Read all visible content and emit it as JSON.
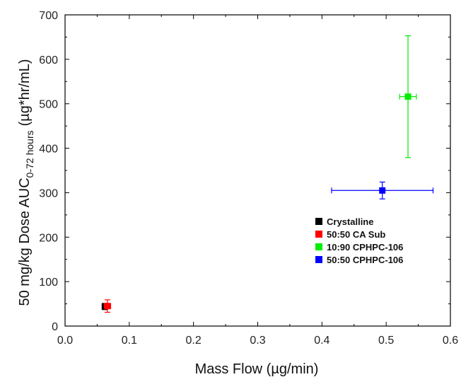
{
  "chart_data": {
    "type": "scatter",
    "title": "",
    "xlabel": "Mass Flow (µg/min)",
    "ylabel": {
      "main": "50 mg/kg Dose AUC",
      "subscript": "0-72 hours",
      "unit": "(µg*hr/mL)"
    },
    "xlim": [
      0.0,
      0.6
    ],
    "ylim": [
      0,
      700
    ],
    "x_ticks": [
      "0.0",
      "0.1",
      "0.2",
      "0.3",
      "0.4",
      "0.5",
      "0.6"
    ],
    "y_ticks": [
      "0",
      "100",
      "200",
      "300",
      "400",
      "500",
      "600",
      "700"
    ],
    "legend_position": "right-middle",
    "grid": false,
    "series": [
      {
        "name": "Crystalline",
        "color": "#000000",
        "x": 0.062,
        "y": 44,
        "x_err": 0.003,
        "y_err": 7
      },
      {
        "name": "50:50 CA Sub",
        "color": "#ff0000",
        "x": 0.066,
        "y": 45,
        "x_err": 0.005,
        "y_err": 14
      },
      {
        "name": "10:90 CPHPC-106",
        "color": "#00ee00",
        "x": 0.534,
        "y": 516,
        "x_err": 0.013,
        "y_err": 137
      },
      {
        "name": "50:50 CPHPC-106",
        "color": "#0000ff",
        "x": 0.494,
        "y": 305,
        "x_err": 0.079,
        "y_err": 19
      }
    ]
  }
}
